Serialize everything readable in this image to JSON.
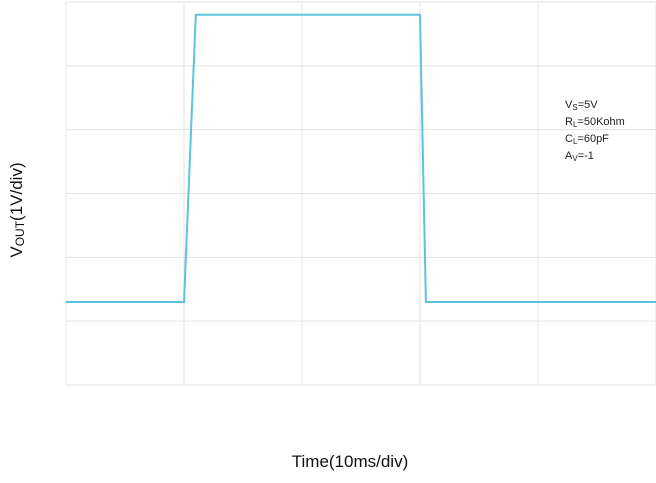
{
  "chart_data": {
    "type": "line",
    "title": "",
    "xlabel": "Time(10ms/div)",
    "ylabel": {
      "main": "V",
      "subscript": "OUT",
      "rest": "(1V/div)"
    },
    "x_unit": "div",
    "y_unit": "div",
    "xlim": [
      0,
      5
    ],
    "ylim": [
      0,
      6
    ],
    "grid": true,
    "grid_divisions": {
      "x": 5,
      "y": 6
    },
    "series": [
      {
        "points": [
          [
            0,
            1.3
          ],
          [
            1.0,
            1.3
          ],
          [
            1.1,
            5.8
          ],
          [
            3.0,
            5.8
          ],
          [
            3.05,
            1.3
          ],
          [
            5,
            1.3
          ]
        ]
      }
    ],
    "annotations": [
      {
        "main": "V",
        "subscript": "S",
        "rest": "=5V"
      },
      {
        "main": "R",
        "subscript": "L",
        "rest": "=50Kohm"
      },
      {
        "main": "C",
        "subscript": "L",
        "rest": "=60pF"
      },
      {
        "main": "A",
        "subscript": "V",
        "rest": "=-1"
      }
    ],
    "colors": {
      "trace": "#5bc3de",
      "grid": "#e3e3e3",
      "background": "#ffffff"
    }
  }
}
